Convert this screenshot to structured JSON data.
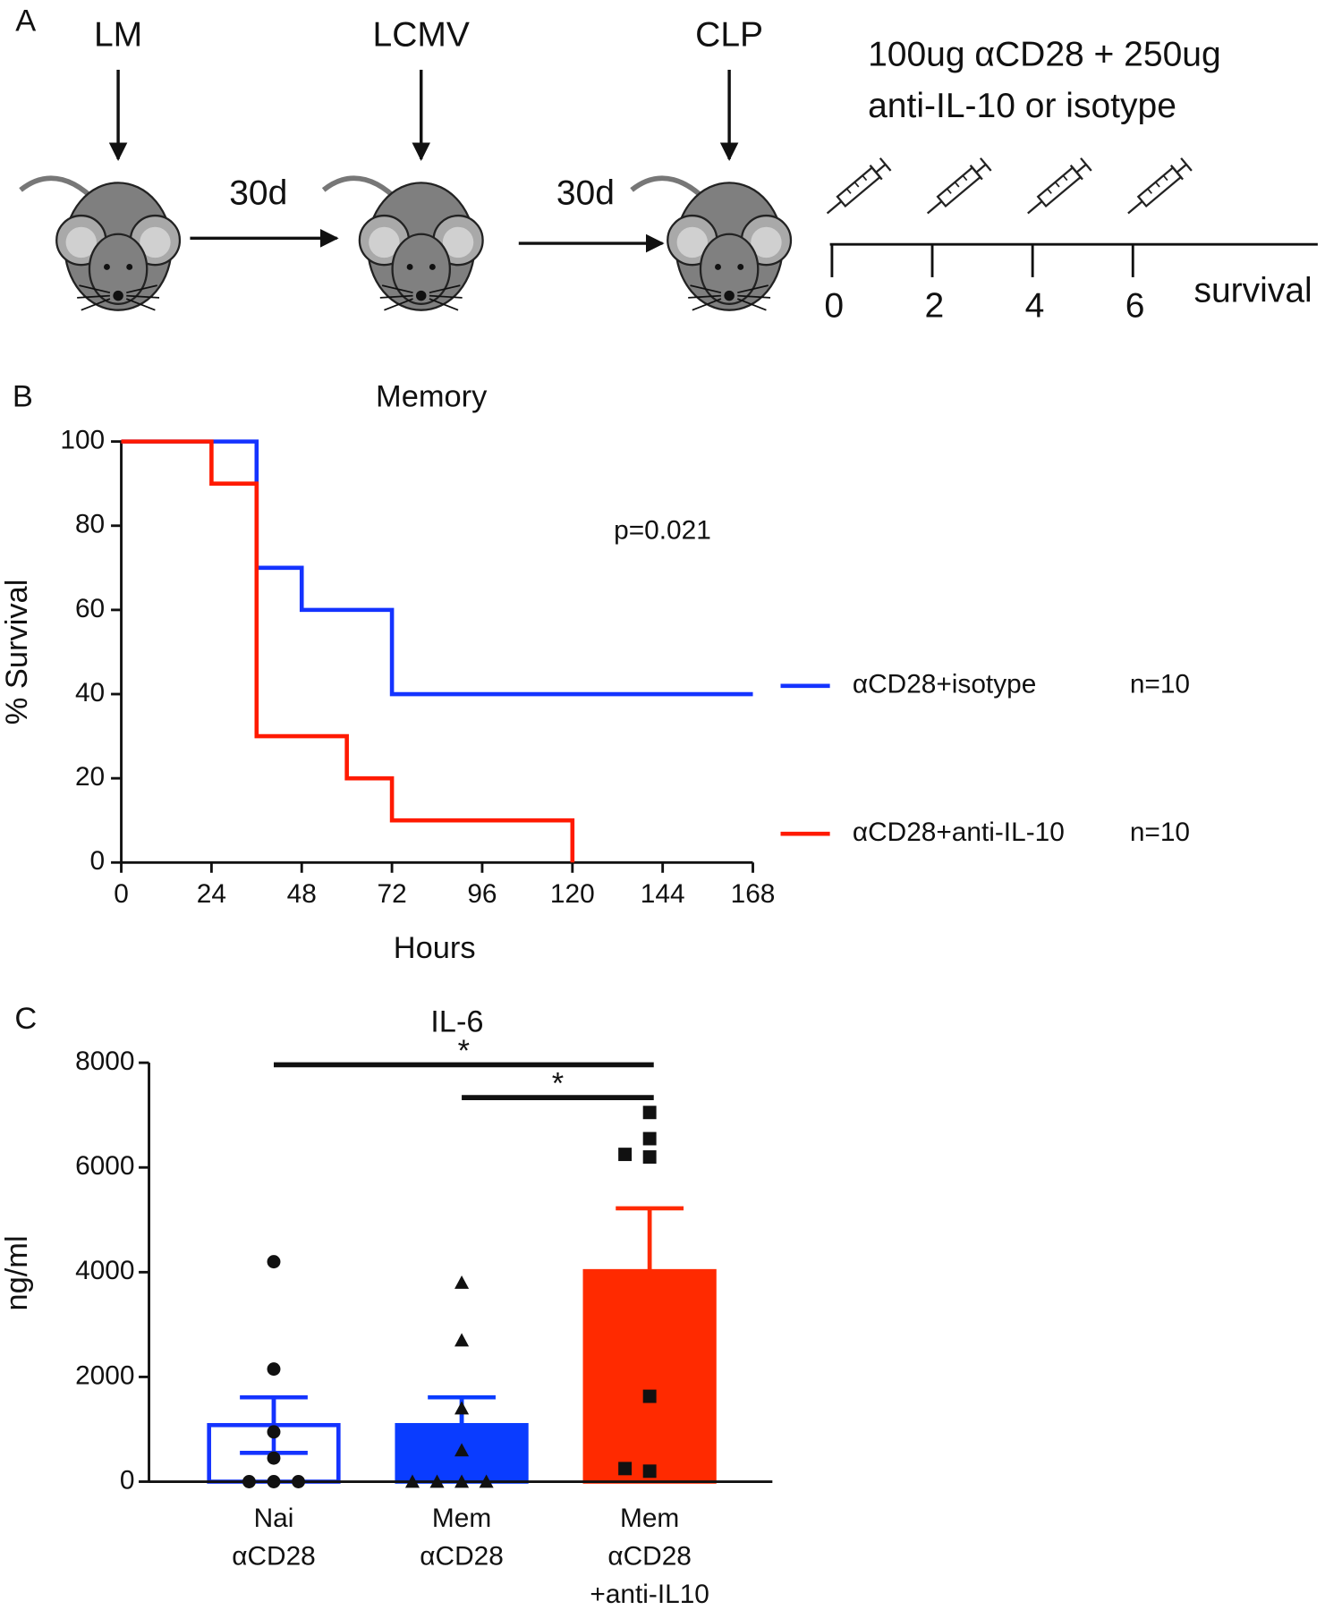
{
  "panel_labels": [
    "A",
    "B",
    "C"
  ],
  "schematic": {
    "stages": [
      "LM",
      "LCMV",
      "CLP"
    ],
    "intervals": [
      "30d",
      "30d"
    ],
    "treatment": [
      "100ug αCD28 + 250ug",
      "anti-IL-10 or isotype"
    ],
    "timeline_ticks": [
      0,
      2,
      4,
      6
    ],
    "timeline_end": "survival"
  },
  "chart_data": [
    {
      "type": "step",
      "title": "Memory",
      "x_label": "Hours",
      "y_label": "% Survival",
      "annotation": "p=0.021",
      "xlim": [
        0,
        168
      ],
      "ylim": [
        0,
        100
      ],
      "xticks": [
        0,
        24,
        48,
        72,
        96,
        120,
        144,
        168
      ],
      "yticks": [
        0,
        20,
        40,
        60,
        80,
        100
      ],
      "series": [
        {
          "name": "αCD28+isotype",
          "n_label": "n=10",
          "color": "#1433ff",
          "x": [
            0,
            36,
            48,
            72,
            168
          ],
          "values": [
            100,
            70,
            60,
            40,
            40
          ]
        },
        {
          "name": "αCD28+anti-IL-10",
          "n_label": "n=10",
          "color": "#ff1a00",
          "x": [
            0,
            24,
            36,
            60,
            72,
            120
          ],
          "values": [
            100,
            90,
            30,
            20,
            10,
            0
          ]
        }
      ]
    },
    {
      "type": "bar",
      "title": "IL-6",
      "y_label": "ng/ml",
      "ylim": [
        0,
        8000
      ],
      "yticks": [
        0,
        2000,
        4000,
        6000,
        8000
      ],
      "categories": [
        [
          "Nai",
          "αCD28"
        ],
        [
          "Mem",
          "αCD28"
        ],
        [
          "Mem",
          "αCD28",
          "+anti-IL10"
        ]
      ],
      "values": [
        1080,
        1080,
        4020
      ],
      "errors": [
        530,
        530,
        1200
      ],
      "fill_colors": [
        "#ffffff",
        "#0a3cff",
        "#ff2a00"
      ],
      "edge_colors": [
        "#1433ff",
        "#0a3cff",
        "#ff2a00"
      ],
      "markers": [
        "circle",
        "triangle",
        "square"
      ],
      "points": [
        [
          4200,
          2150,
          950,
          450,
          0,
          0,
          0
        ],
        [
          3800,
          2700,
          1400,
          600,
          0,
          0,
          0,
          0
        ],
        [
          7050,
          6550,
          6200,
          6250,
          1630,
          200,
          250
        ]
      ],
      "significance": [
        {
          "from": 0,
          "to": 2,
          "label": "*"
        },
        {
          "from": 1,
          "to": 2,
          "label": "*"
        }
      ]
    }
  ]
}
